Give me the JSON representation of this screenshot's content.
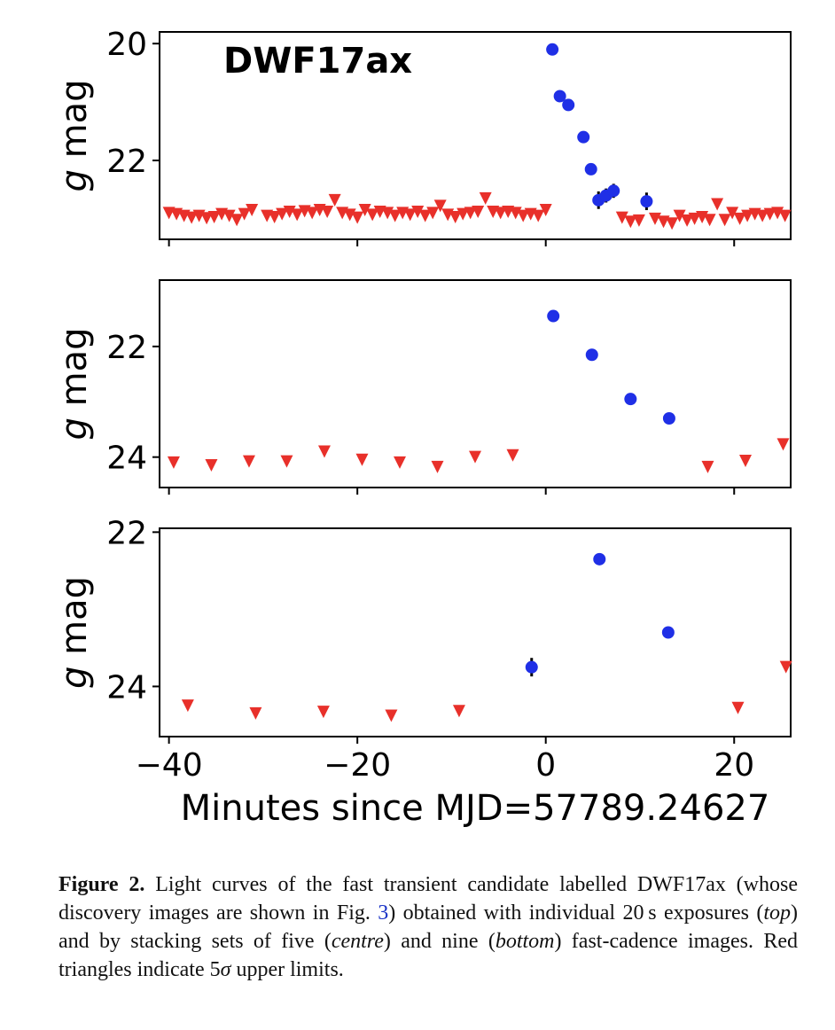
{
  "chart_data": [
    {
      "type": "scatter",
      "title": "DWF17ax",
      "ylabel": "g mag",
      "xlim": [
        -41,
        26
      ],
      "ylim": [
        23.35,
        19.8
      ],
      "yticks": [
        "20",
        "22"
      ],
      "series": [
        {
          "kind": "detection",
          "color": "#1f2fe6",
          "points": [
            {
              "x": 0.7,
              "y": 20.1
            },
            {
              "x": 1.5,
              "y": 20.9
            },
            {
              "x": 2.4,
              "y": 21.05
            },
            {
              "x": 4.0,
              "y": 21.6
            },
            {
              "x": 4.8,
              "y": 22.15
            },
            {
              "x": 5.6,
              "y": 22.68,
              "err": 0.15
            },
            {
              "x": 6.4,
              "y": 22.6,
              "err": 0.12
            },
            {
              "x": 7.2,
              "y": 22.52,
              "err": 0.12
            },
            {
              "x": 10.7,
              "y": 22.7,
              "err": 0.15
            }
          ]
        },
        {
          "kind": "upper-limit",
          "color": "#e8302a",
          "points": [
            {
              "x": -40.0,
              "y": 22.9
            },
            {
              "x": -39.2,
              "y": 22.92
            },
            {
              "x": -38.4,
              "y": 22.95
            },
            {
              "x": -37.6,
              "y": 22.98
            },
            {
              "x": -36.8,
              "y": 22.95
            },
            {
              "x": -36.0,
              "y": 22.99
            },
            {
              "x": -35.2,
              "y": 22.97
            },
            {
              "x": -34.4,
              "y": 22.92
            },
            {
              "x": -33.6,
              "y": 22.95
            },
            {
              "x": -32.8,
              "y": 23.02
            },
            {
              "x": -32.0,
              "y": 22.92
            },
            {
              "x": -31.2,
              "y": 22.85
            },
            {
              "x": -29.6,
              "y": 22.95
            },
            {
              "x": -28.8,
              "y": 22.97
            },
            {
              "x": -28.0,
              "y": 22.92
            },
            {
              "x": -27.2,
              "y": 22.88
            },
            {
              "x": -26.4,
              "y": 22.93
            },
            {
              "x": -25.6,
              "y": 22.87
            },
            {
              "x": -24.8,
              "y": 22.9
            },
            {
              "x": -24.0,
              "y": 22.85
            },
            {
              "x": -23.2,
              "y": 22.88
            },
            {
              "x": -22.4,
              "y": 22.68
            },
            {
              "x": -21.6,
              "y": 22.9
            },
            {
              "x": -20.8,
              "y": 22.93
            },
            {
              "x": -20.0,
              "y": 22.98
            },
            {
              "x": -19.2,
              "y": 22.85
            },
            {
              "x": -18.4,
              "y": 22.93
            },
            {
              "x": -17.6,
              "y": 22.88
            },
            {
              "x": -16.8,
              "y": 22.9
            },
            {
              "x": -16.0,
              "y": 22.95
            },
            {
              "x": -15.2,
              "y": 22.9
            },
            {
              "x": -14.4,
              "y": 22.93
            },
            {
              "x": -13.6,
              "y": 22.88
            },
            {
              "x": -12.8,
              "y": 22.95
            },
            {
              "x": -12.0,
              "y": 22.9
            },
            {
              "x": -11.2,
              "y": 22.78
            },
            {
              "x": -10.4,
              "y": 22.93
            },
            {
              "x": -9.6,
              "y": 22.97
            },
            {
              "x": -8.8,
              "y": 22.92
            },
            {
              "x": -8.0,
              "y": 22.9
            },
            {
              "x": -7.2,
              "y": 22.88
            },
            {
              "x": -6.4,
              "y": 22.65
            },
            {
              "x": -5.6,
              "y": 22.88
            },
            {
              "x": -4.8,
              "y": 22.9
            },
            {
              "x": -4.0,
              "y": 22.88
            },
            {
              "x": -3.2,
              "y": 22.9
            },
            {
              "x": -2.4,
              "y": 22.95
            },
            {
              "x": -1.6,
              "y": 22.92
            },
            {
              "x": -0.8,
              "y": 22.95
            },
            {
              "x": 0.0,
              "y": 22.85
            },
            {
              "x": 8.1,
              "y": 22.98
            },
            {
              "x": 9.0,
              "y": 23.05
            },
            {
              "x": 9.9,
              "y": 23.03
            },
            {
              "x": 11.6,
              "y": 23.0
            },
            {
              "x": 12.5,
              "y": 23.05
            },
            {
              "x": 13.4,
              "y": 23.08
            },
            {
              "x": 14.2,
              "y": 22.95
            },
            {
              "x": 15.0,
              "y": 23.03
            },
            {
              "x": 15.8,
              "y": 23.0
            },
            {
              "x": 16.6,
              "y": 22.97
            },
            {
              "x": 17.4,
              "y": 23.02
            },
            {
              "x": 18.2,
              "y": 22.75
            },
            {
              "x": 19.0,
              "y": 23.02
            },
            {
              "x": 19.8,
              "y": 22.9
            },
            {
              "x": 20.6,
              "y": 23.0
            },
            {
              "x": 21.4,
              "y": 22.95
            },
            {
              "x": 22.2,
              "y": 22.92
            },
            {
              "x": 23.0,
              "y": 22.95
            },
            {
              "x": 23.8,
              "y": 22.92
            },
            {
              "x": 24.6,
              "y": 22.9
            },
            {
              "x": 25.4,
              "y": 22.95
            }
          ]
        }
      ]
    },
    {
      "type": "scatter",
      "ylabel": "g mag",
      "xlim": [
        -41,
        26
      ],
      "ylim": [
        24.55,
        20.8
      ],
      "yticks": [
        "22",
        "24"
      ],
      "series": [
        {
          "kind": "detection",
          "color": "#1f2fe6",
          "points": [
            {
              "x": 0.8,
              "y": 21.45
            },
            {
              "x": 4.9,
              "y": 22.15
            },
            {
              "x": 9.0,
              "y": 22.95
            },
            {
              "x": 13.1,
              "y": 23.3
            }
          ]
        },
        {
          "kind": "upper-limit",
          "color": "#e8302a",
          "points": [
            {
              "x": -39.5,
              "y": 24.1
            },
            {
              "x": -35.5,
              "y": 24.15
            },
            {
              "x": -31.5,
              "y": 24.08
            },
            {
              "x": -27.5,
              "y": 24.08
            },
            {
              "x": -23.5,
              "y": 23.9
            },
            {
              "x": -19.5,
              "y": 24.05
            },
            {
              "x": -15.5,
              "y": 24.1
            },
            {
              "x": -11.5,
              "y": 24.18
            },
            {
              "x": -7.5,
              "y": 24.0
            },
            {
              "x": -3.5,
              "y": 23.97
            },
            {
              "x": 17.2,
              "y": 24.18
            },
            {
              "x": 21.2,
              "y": 24.07
            },
            {
              "x": 25.2,
              "y": 23.77
            }
          ]
        }
      ]
    },
    {
      "type": "scatter",
      "ylabel": "g mag",
      "xlabel": "Minutes since MJD=57789.24627",
      "xlim": [
        -41,
        26
      ],
      "xticks": [
        -40,
        -20,
        0,
        20
      ],
      "xtick_labels": [
        "−40",
        "−20",
        "0",
        "20"
      ],
      "ylim": [
        24.65,
        21.95
      ],
      "yticks": [
        "22",
        "24"
      ],
      "series": [
        {
          "kind": "detection",
          "color": "#1f2fe6",
          "points": [
            {
              "x": -1.5,
              "y": 23.75,
              "err": 0.12
            },
            {
              "x": 5.7,
              "y": 22.35
            },
            {
              "x": 13.0,
              "y": 23.3,
              "err": 0.05
            }
          ]
        },
        {
          "kind": "upper-limit",
          "color": "#e8302a",
          "points": [
            {
              "x": -38.0,
              "y": 24.25
            },
            {
              "x": -30.8,
              "y": 24.35
            },
            {
              "x": -23.6,
              "y": 24.33
            },
            {
              "x": -16.4,
              "y": 24.38
            },
            {
              "x": -9.2,
              "y": 24.32
            },
            {
              "x": 20.4,
              "y": 24.28
            },
            {
              "x": 25.5,
              "y": 23.75
            }
          ]
        }
      ]
    }
  ],
  "caption": {
    "label": "Figure 2.",
    "text_1": " Light curves of the fast transient candidate labelled DWF17ax (whose discovery images are shown in Fig. ",
    "fig_ref": "3",
    "text_2": ") obtained with individual 20 s exposures (",
    "top": "top",
    "text_3": ") and by stacking sets of five (",
    "centre": "centre",
    "text_4": ") and nine (",
    "bottom": "bottom",
    "text_5": ") fast-cadence images. Red triangles indicate 5",
    "sigma": "σ",
    "text_6": " upper limits."
  }
}
